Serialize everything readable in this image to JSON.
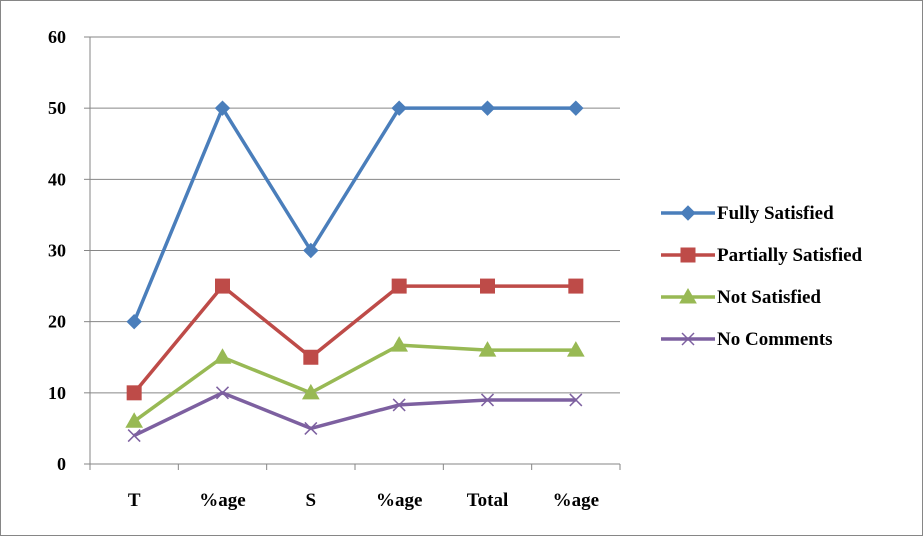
{
  "chart_data": {
    "type": "line",
    "title": "",
    "xlabel": "",
    "ylabel": "",
    "categories": [
      "T",
      "%age",
      "S",
      "%age",
      "Total",
      "%age"
    ],
    "ylim": [
      0,
      60
    ],
    "yticks": [
      "0",
      "10",
      "20",
      "30",
      "40",
      "50",
      "60"
    ],
    "grid": true,
    "legend_position": "right",
    "series": [
      {
        "name": "Fully Satisfied",
        "color": "#4A7EBB",
        "marker": "diamond",
        "values": [
          20,
          50,
          30,
          50,
          50,
          50
        ]
      },
      {
        "name": "Partially Satisfied",
        "color": "#BE4B48",
        "marker": "square",
        "values": [
          10,
          25,
          15,
          25,
          25,
          25
        ]
      },
      {
        "name": "Not Satisfied",
        "color": "#98B954",
        "marker": "triangle",
        "values": [
          6,
          15,
          10,
          16.7,
          16,
          16
        ]
      },
      {
        "name": "No Comments",
        "color": "#7D60A0",
        "marker": "x",
        "values": [
          4,
          10,
          5,
          8.3,
          9,
          9
        ]
      }
    ]
  }
}
